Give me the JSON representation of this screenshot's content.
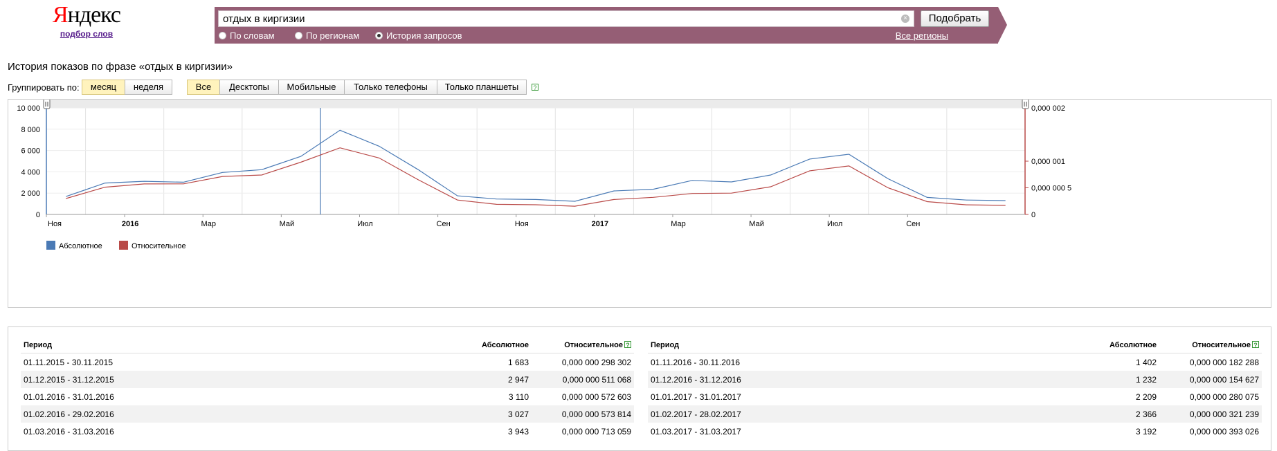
{
  "brand": {
    "logo_first": "Я",
    "logo_rest": "ндекс",
    "subtitle": "подбор слов"
  },
  "search": {
    "query": "отдых в киргизии",
    "submit_label": "Подобрать",
    "clear_icon": "×",
    "modes": [
      {
        "label": "По словам",
        "selected": false
      },
      {
        "label": "По регионам",
        "selected": false
      },
      {
        "label": "История запросов",
        "selected": true
      }
    ],
    "regions_link": "Все регионы"
  },
  "page_title": "История показов по фразе «отдых в киргизии»",
  "grouping": {
    "label": "Группировать по:",
    "options": [
      {
        "label": "месяц",
        "selected": true
      },
      {
        "label": "неделя",
        "selected": false
      }
    ]
  },
  "devices": [
    {
      "label": "Все",
      "selected": true
    },
    {
      "label": "Десктопы"
    },
    {
      "label": "Мобильные"
    },
    {
      "label": "Только телефоны"
    },
    {
      "label": "Только планшеты"
    }
  ],
  "help_glyph": "?",
  "colors": {
    "absolute": "#4a7ab5",
    "relative": "#b94a48",
    "brand_bar": "#955e75"
  },
  "chart_data": {
    "type": "line",
    "x_tick_labels": [
      "Ноя",
      "2016",
      "Мар",
      "Май",
      "Июл",
      "Сен",
      "Ноя",
      "2017",
      "Мар",
      "Май",
      "Июл",
      "Сен"
    ],
    "y_left_ticks": [
      "10 000",
      "8 000",
      "6 000",
      "4 000",
      "2 000",
      "0"
    ],
    "y_right_ticks": [
      "0,000 002",
      "0,000 001",
      "0,000 000 5",
      "0"
    ],
    "ylim_left": [
      0,
      10000
    ],
    "ylim_right": [
      0,
      2e-06
    ],
    "categories": [
      "2015-11",
      "2015-12",
      "2016-01",
      "2016-02",
      "2016-03",
      "2016-04",
      "2016-05",
      "2016-06",
      "2016-07",
      "2016-08",
      "2016-09",
      "2016-10",
      "2016-11",
      "2016-12",
      "2017-01",
      "2017-02",
      "2017-03",
      "2017-04",
      "2017-05",
      "2017-06",
      "2017-07",
      "2017-08",
      "2017-09",
      "2017-10",
      "2017-11"
    ],
    "series": [
      {
        "name": "Абсолютное",
        "axis": "left",
        "values": [
          1683,
          2947,
          3110,
          3027,
          3943,
          4200,
          5450,
          7900,
          6400,
          4200,
          1750,
          1450,
          1402,
          1232,
          2209,
          2366,
          3192,
          3050,
          3700,
          5200,
          5650,
          3350,
          1600,
          1350,
          1300
        ]
      },
      {
        "name": "Относительное",
        "axis": "right",
        "values": [
          2.98302e-07,
          5.11068e-07,
          5.72603e-07,
          5.73814e-07,
          7.13059e-07,
          7.4e-07,
          9.8e-07,
          1.25e-06,
          1.06e-06,
          6.5e-07,
          2.7e-07,
          1.9e-07,
          1.82288e-07,
          1.54627e-07,
          2.80075e-07,
          3.21239e-07,
          3.93026e-07,
          4e-07,
          5.2e-07,
          8.2e-07,
          9.1e-07,
          5e-07,
          2.4e-07,
          1.8e-07,
          1.7e-07
        ]
      }
    ],
    "legend": [
      "Абсолютное",
      "Относительное"
    ],
    "grid": true
  },
  "table": {
    "headers": [
      "Период",
      "Абсолютное",
      "Относительное"
    ],
    "left": [
      [
        "01.11.2015 - 30.11.2015",
        "1 683",
        "0,000 000 298 302"
      ],
      [
        "01.12.2015 - 31.12.2015",
        "2 947",
        "0,000 000 511 068"
      ],
      [
        "01.01.2016 - 31.01.2016",
        "3 110",
        "0,000 000 572 603"
      ],
      [
        "01.02.2016 - 29.02.2016",
        "3 027",
        "0,000 000 573 814"
      ],
      [
        "01.03.2016 - 31.03.2016",
        "3 943",
        "0,000 000 713 059"
      ]
    ],
    "right": [
      [
        "01.11.2016 - 30.11.2016",
        "1 402",
        "0,000 000 182 288"
      ],
      [
        "01.12.2016 - 31.12.2016",
        "1 232",
        "0,000 000 154 627"
      ],
      [
        "01.01.2017 - 31.01.2017",
        "2 209",
        "0,000 000 280 075"
      ],
      [
        "01.02.2017 - 28.02.2017",
        "2 366",
        "0,000 000 321 239"
      ],
      [
        "01.03.2017 - 31.03.2017",
        "3 192",
        "0,000 000 393 026"
      ]
    ]
  }
}
